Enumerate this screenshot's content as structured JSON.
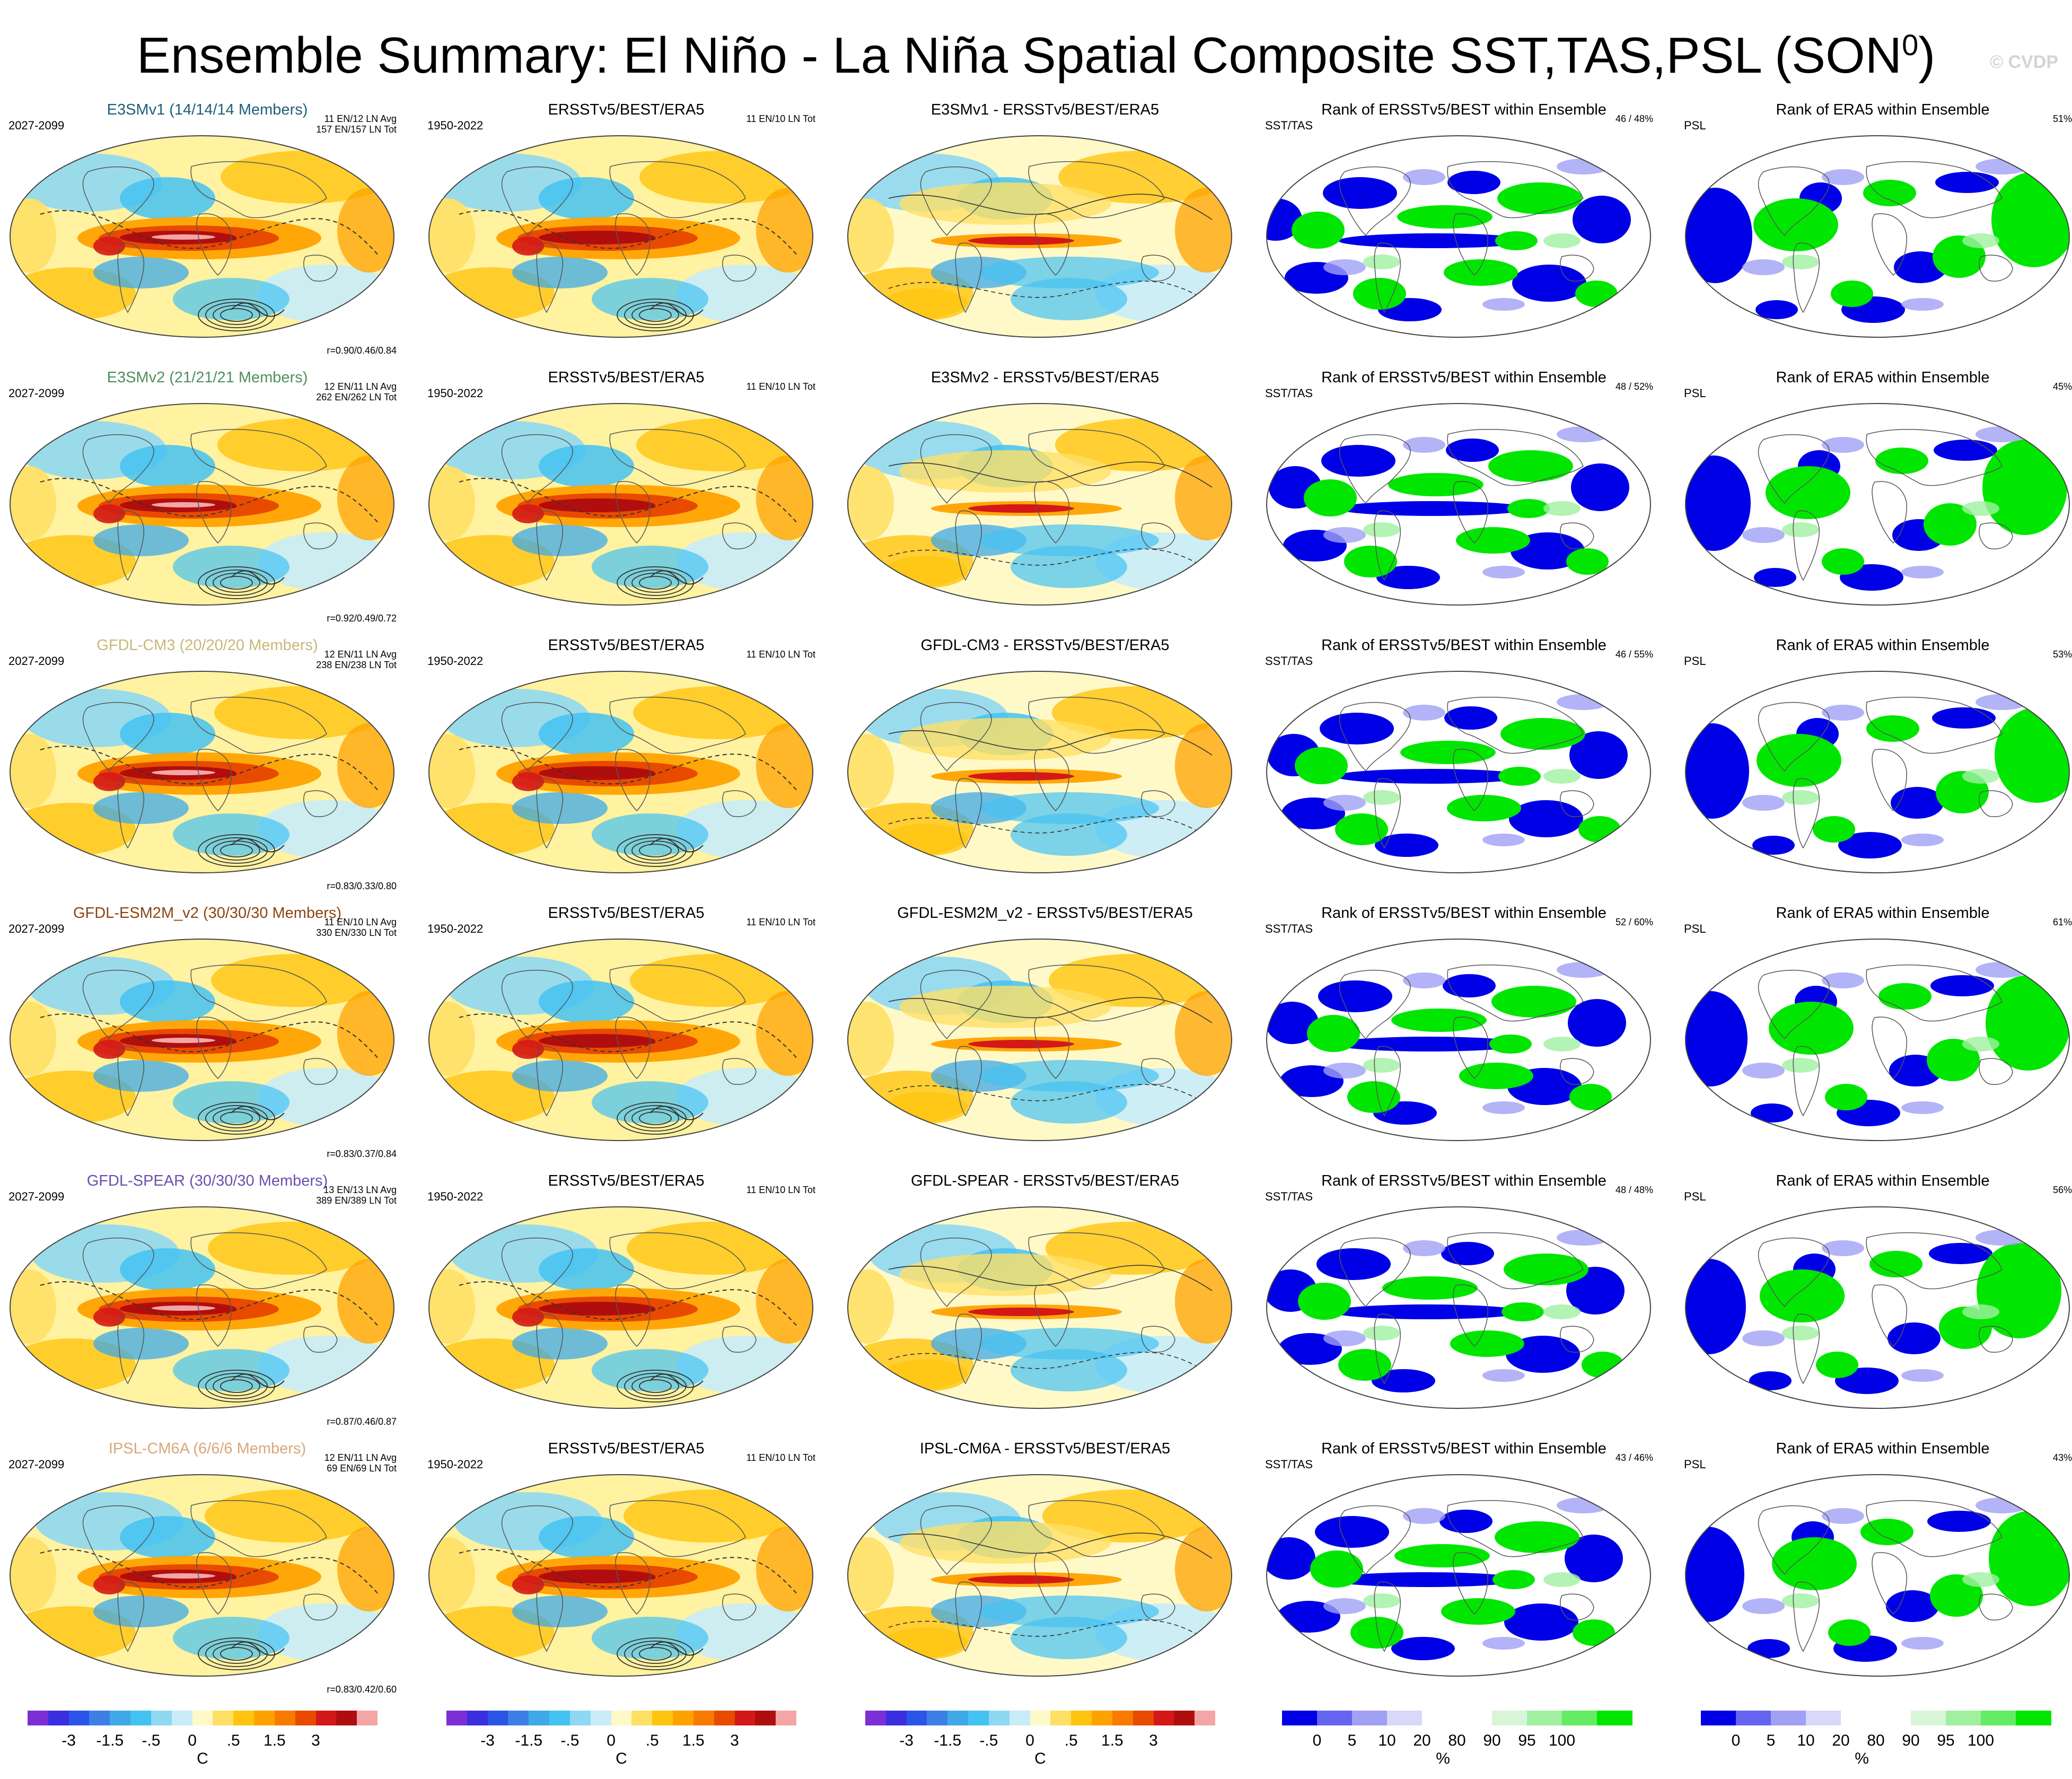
{
  "title": "Ensemble Summary: El Niño - La Niña Spatial Composite SST,TAS,PSL (SON",
  "title_sup": "0",
  "title_close": ")",
  "watermark": "© CVDP",
  "model_colors": {
    "E3SMv1": "#1f5f7a",
    "E3SMv2": "#4f8f5f",
    "GFDL-CM3": "#c8b878",
    "GFDL-ESM2M_v2": "#8b4513",
    "GFDL-SPEAR": "#6a4fb0",
    "IPSL-CM6A": "#d9a77a"
  },
  "rows": [
    {
      "model": "E3SMv1",
      "ens": {
        "title": "E3SMv1 (14/14/14 Members)",
        "years": "2027-2099",
        "tr1": "11 EN/12 LN Avg",
        "tr2": "157 EN/157 LN Tot",
        "corr": "r=0.90/0.46/0.84"
      },
      "obs": {
        "title": "ERSSTv5/BEST/ERA5",
        "years": "1950-2022",
        "tr1": "11 EN/10 LN Tot"
      },
      "diff": {
        "title": "E3SMv1 - ERSSTv5/BEST/ERA5"
      },
      "rank1": {
        "title": "Rank of ERSSTv5/BEST within Ensemble",
        "label": "SST/TAS",
        "pct": "46 /  48%"
      },
      "rank2": {
        "title": "Rank of ERA5 within Ensemble",
        "label": "PSL",
        "pct": "51%"
      }
    },
    {
      "model": "E3SMv2",
      "ens": {
        "title": "E3SMv2 (21/21/21 Members)",
        "years": "2027-2099",
        "tr1": "12 EN/11 LN Avg",
        "tr2": "262 EN/262 LN Tot",
        "corr": "r=0.92/0.49/0.72"
      },
      "obs": {
        "title": "ERSSTv5/BEST/ERA5",
        "years": "1950-2022",
        "tr1": "11 EN/10 LN Tot"
      },
      "diff": {
        "title": "E3SMv2 - ERSSTv5/BEST/ERA5"
      },
      "rank1": {
        "title": "Rank of ERSSTv5/BEST within Ensemble",
        "label": "SST/TAS",
        "pct": "48 /  52%"
      },
      "rank2": {
        "title": "Rank of ERA5 within Ensemble",
        "label": "PSL",
        "pct": "45%"
      }
    },
    {
      "model": "GFDL-CM3",
      "ens": {
        "title": "GFDL-CM3 (20/20/20 Members)",
        "years": "2027-2099",
        "tr1": "12 EN/11 LN Avg",
        "tr2": "238 EN/238 LN Tot",
        "corr": "r=0.83/0.33/0.80"
      },
      "obs": {
        "title": "ERSSTv5/BEST/ERA5",
        "years": "1950-2022",
        "tr1": "11 EN/10 LN Tot"
      },
      "diff": {
        "title": "GFDL-CM3 - ERSSTv5/BEST/ERA5"
      },
      "rank1": {
        "title": "Rank of ERSSTv5/BEST within Ensemble",
        "label": "SST/TAS",
        "pct": "46 /  55%"
      },
      "rank2": {
        "title": "Rank of ERA5 within Ensemble",
        "label": "PSL",
        "pct": "53%"
      }
    },
    {
      "model": "GFDL-ESM2M_v2",
      "ens": {
        "title": "GFDL-ESM2M_v2 (30/30/30 Members)",
        "years": "2027-2099",
        "tr1": "11 EN/10 LN Avg",
        "tr2": "330 EN/330 LN Tot",
        "corr": "r=0.83/0.37/0.84"
      },
      "obs": {
        "title": "ERSSTv5/BEST/ERA5",
        "years": "1950-2022",
        "tr1": "11 EN/10 LN Tot"
      },
      "diff": {
        "title": "GFDL-ESM2M_v2 - ERSSTv5/BEST/ERA5"
      },
      "rank1": {
        "title": "Rank of ERSSTv5/BEST within Ensemble",
        "label": "SST/TAS",
        "pct": "52 /  60%"
      },
      "rank2": {
        "title": "Rank of ERA5 within Ensemble",
        "label": "PSL",
        "pct": "61%"
      }
    },
    {
      "model": "GFDL-SPEAR",
      "ens": {
        "title": "GFDL-SPEAR (30/30/30 Members)",
        "years": "2027-2099",
        "tr1": "13 EN/13 LN Avg",
        "tr2": "389 EN/389 LN Tot",
        "corr": "r=0.87/0.46/0.87"
      },
      "obs": {
        "title": "ERSSTv5/BEST/ERA5",
        "years": "1950-2022",
        "tr1": "11 EN/10 LN Tot"
      },
      "diff": {
        "title": "GFDL-SPEAR - ERSSTv5/BEST/ERA5"
      },
      "rank1": {
        "title": "Rank of ERSSTv5/BEST within Ensemble",
        "label": "SST/TAS",
        "pct": "48 /  48%"
      },
      "rank2": {
        "title": "Rank of ERA5 within Ensemble",
        "label": "PSL",
        "pct": "56%"
      }
    },
    {
      "model": "IPSL-CM6A",
      "ens": {
        "title": "IPSL-CM6A (6/6/6 Members)",
        "years": "2027-2099",
        "tr1": "12 EN/11 LN Avg",
        "tr2": "69 EN/69 LN Tot",
        "corr": "r=0.83/0.42/0.60"
      },
      "obs": {
        "title": "ERSSTv5/BEST/ERA5",
        "years": "1950-2022",
        "tr1": "11 EN/10 LN Tot"
      },
      "diff": {
        "title": "IPSL-CM6A - ERSSTv5/BEST/ERA5"
      },
      "rank1": {
        "title": "Rank of ERSSTv5/BEST within Ensemble",
        "label": "SST/TAS",
        "pct": "43 /  46%"
      },
      "rank2": {
        "title": "Rank of ERA5 within Ensemble",
        "label": "PSL",
        "pct": "43%"
      }
    }
  ],
  "colorbars": [
    {
      "type": "temperature",
      "unit": "C",
      "labels": [
        "-3",
        "-1.5",
        "-.5",
        "0",
        ".5",
        "1.5",
        "3"
      ],
      "colors": [
        "#7b2fd4",
        "#3a2fe0",
        "#2a55e6",
        "#3d7fe6",
        "#3ea8e8",
        "#44c2f2",
        "#8fd8f2",
        "#c8ecf8",
        "#fff9c8",
        "#ffe066",
        "#ffc40f",
        "#ffa200",
        "#f97a00",
        "#e84a00",
        "#d41818",
        "#b00e0e",
        "#f4a6a6"
      ]
    },
    {
      "type": "rank",
      "unit": "%",
      "labels": [
        "0",
        "5",
        "10",
        "20",
        "80",
        "90",
        "95",
        "100"
      ],
      "colors": [
        "#0000e6",
        "#6464f0",
        "#a0a0f5",
        "#d8d8fa",
        "#ffffff",
        "#ffffff",
        "#d8f5d8",
        "#a0f0a0",
        "#64ec64",
        "#00e600"
      ]
    }
  ]
}
